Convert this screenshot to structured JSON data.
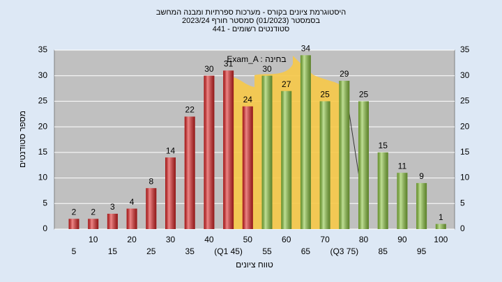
{
  "chart_data": {
    "type": "bar",
    "title": [
      "היסטוגרמת ציונים בקורס - מערכות ספרתיות ומבנה המחשב",
      "בסמסטר  (01/2023)  סמסטר חורף  2023/24",
      "סטודנטים רשומים - 441"
    ],
    "annotation": "Exam_A : בחינה",
    "x_label": "טווח ציונים",
    "y_label": "מספר סטודנטים",
    "categories": [
      "5",
      "10",
      "15",
      "20",
      "25",
      "30",
      "35",
      "40",
      "(Q1 45)",
      "50",
      "55",
      "60",
      "65",
      "70",
      "(Q3 75)",
      "80",
      "85",
      "90",
      "95",
      "100"
    ],
    "values": [
      2,
      2,
      3,
      4,
      8,
      14,
      22,
      30,
      31,
      24,
      30,
      27,
      34,
      25,
      29,
      25,
      15,
      11,
      9,
      1
    ],
    "colors": [
      "#e02424",
      "#e02424",
      "#e02424",
      "#e02424",
      "#e02424",
      "#e02424",
      "#e02424",
      "#e02424",
      "#e02424",
      "#e02424",
      "#8cc63f",
      "#8cc63f",
      "#8cc63f",
      "#8cc63f",
      "#8cc63f",
      "#8cc63f",
      "#8cc63f",
      "#8cc63f",
      "#8cc63f",
      "#8cc63f"
    ],
    "ylim": [
      0,
      35
    ],
    "yticks": [
      0,
      5,
      10,
      15,
      20,
      25,
      30,
      35
    ],
    "grid": true
  }
}
